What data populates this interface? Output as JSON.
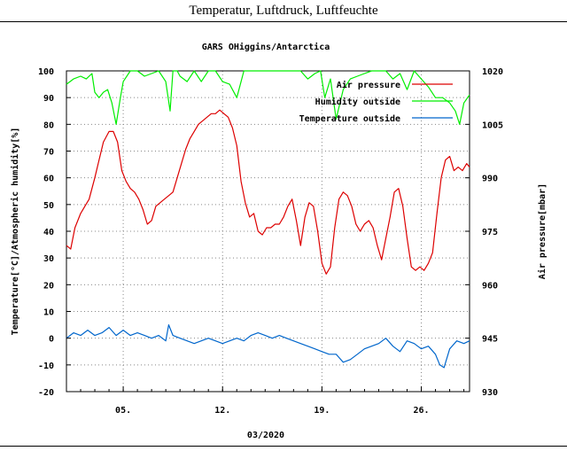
{
  "page": {
    "title": "Temperatur, Luftdruck, Luftfeuchte"
  },
  "chart_data": {
    "type": "line",
    "title": "GARS OHiggins/Antarctica",
    "xlabel": "03/2020",
    "ylabel_left": "Temperature[°C]/Atmospheric humidity[%]",
    "ylabel_right": "Air pressure[mbar]",
    "xlim": [
      1,
      29.4
    ],
    "ylim_left": [
      -20,
      100
    ],
    "ylim_right": [
      930,
      1020
    ],
    "x_ticks": [
      5,
      12,
      19,
      26
    ],
    "x_tick_labels": [
      "05.",
      "12.",
      "19.",
      "26."
    ],
    "y_ticks_left": [
      -20,
      -10,
      0,
      10,
      20,
      30,
      40,
      50,
      60,
      70,
      80,
      90,
      100
    ],
    "y_ticks_right": [
      930,
      945,
      960,
      975,
      990,
      1005,
      1020
    ],
    "grid": true,
    "legend_position": "top-right",
    "series": [
      {
        "name": "Air pressure",
        "axis": "right",
        "color": "#dd0000",
        "x": [
          1.0,
          1.3,
          1.6,
          2.0,
          2.3,
          2.6,
          3.0,
          3.3,
          3.6,
          4.0,
          4.3,
          4.6,
          4.9,
          5.2,
          5.5,
          5.8,
          6.1,
          6.4,
          6.7,
          7.0,
          7.3,
          7.6,
          7.9,
          8.2,
          8.5,
          8.8,
          9.1,
          9.4,
          9.7,
          10.0,
          10.3,
          10.6,
          10.9,
          11.2,
          11.5,
          11.8,
          12.1,
          12.4,
          12.7,
          13.0,
          13.3,
          13.6,
          13.9,
          14.2,
          14.5,
          14.8,
          15.1,
          15.4,
          15.7,
          16.0,
          16.3,
          16.6,
          16.9,
          17.2,
          17.5,
          17.8,
          18.1,
          18.4,
          18.7,
          19.0,
          19.3,
          19.6,
          19.9,
          20.2,
          20.5,
          20.8,
          21.1,
          21.4,
          21.7,
          22.0,
          22.3,
          22.6,
          22.9,
          23.2,
          23.5,
          23.8,
          24.1,
          24.4,
          24.7,
          25.0,
          25.3,
          25.6,
          25.9,
          26.2,
          26.5,
          26.8,
          27.1,
          27.4,
          27.7,
          28.0,
          28.3,
          28.6,
          28.9,
          29.2,
          29.4
        ],
        "values": [
          971,
          970,
          976,
          980,
          982,
          984,
          990,
          995,
          1000,
          1003,
          1003,
          1000,
          992,
          989,
          987,
          986,
          984,
          981,
          977,
          978,
          982,
          983,
          984,
          985,
          986,
          990,
          994,
          998,
          1001,
          1003,
          1005,
          1006,
          1007,
          1008,
          1008,
          1009,
          1008,
          1007,
          1004,
          999,
          989,
          983,
          979,
          980,
          975,
          974,
          976,
          976,
          977,
          977,
          979,
          982,
          984,
          978,
          971,
          979,
          983,
          982,
          975,
          966,
          963,
          965,
          976,
          984,
          986,
          985,
          982,
          977,
          975,
          977,
          978,
          976,
          971,
          967,
          973,
          979,
          986,
          987,
          982,
          973,
          965,
          964,
          965,
          964,
          966,
          969,
          980,
          990,
          995,
          996,
          992,
          993,
          992,
          994,
          993
        ]
      },
      {
        "name": "Humidity outside",
        "axis": "left",
        "color": "#00ee00",
        "x": [
          1.0,
          1.5,
          2.0,
          2.4,
          2.8,
          3.0,
          3.3,
          3.6,
          3.9,
          4.2,
          4.5,
          4.8,
          5.0,
          5.5,
          6.0,
          6.5,
          7.0,
          7.5,
          8.0,
          8.3,
          8.5,
          8.8,
          9.0,
          9.5,
          10.0,
          10.5,
          11.0,
          11.5,
          12.0,
          12.5,
          13.0,
          13.5,
          14.0,
          14.5,
          15.0,
          15.5,
          16.0,
          16.5,
          17.0,
          17.5,
          18.0,
          18.5,
          18.9,
          19.2,
          19.6,
          20.0,
          20.5,
          21.0,
          21.5,
          22.0,
          22.5,
          23.0,
          23.5,
          24.0,
          24.5,
          25.0,
          25.5,
          26.0,
          26.5,
          27.0,
          27.5,
          28.0,
          28.4,
          28.7,
          29.0,
          29.4
        ],
        "values": [
          95,
          97,
          98,
          97,
          99,
          92,
          90,
          92,
          93,
          88,
          80,
          90,
          96,
          100,
          100,
          98,
          99,
          100,
          96,
          85,
          100,
          100,
          98,
          96,
          100,
          96,
          100,
          100,
          96,
          95,
          90,
          100,
          100,
          100,
          100,
          100,
          100,
          100,
          100,
          100,
          97,
          99,
          100,
          90,
          97,
          82,
          93,
          97,
          98,
          99,
          100,
          100,
          100,
          97,
          99,
          93,
          100,
          97,
          94,
          90,
          90,
          88,
          85,
          80,
          88,
          91
        ]
      },
      {
        "name": "Temperature outside",
        "axis": "left",
        "color": "#0066cc",
        "x": [
          1.0,
          1.5,
          2.0,
          2.5,
          3.0,
          3.5,
          4.0,
          4.5,
          5.0,
          5.5,
          6.0,
          6.5,
          7.0,
          7.5,
          8.0,
          8.2,
          8.5,
          9.0,
          9.5,
          10.0,
          10.5,
          11.0,
          11.5,
          12.0,
          12.5,
          13.0,
          13.5,
          14.0,
          14.5,
          15.0,
          15.5,
          16.0,
          16.5,
          17.0,
          17.5,
          18.0,
          18.5,
          19.0,
          19.5,
          20.0,
          20.5,
          21.0,
          21.5,
          22.0,
          22.5,
          23.0,
          23.5,
          24.0,
          24.5,
          25.0,
          25.5,
          26.0,
          26.5,
          27.0,
          27.3,
          27.6,
          28.0,
          28.5,
          29.0,
          29.4
        ],
        "values": [
          0,
          2,
          1,
          3,
          1,
          2,
          4,
          1,
          3,
          1,
          2,
          1,
          0,
          1,
          -1,
          5,
          1,
          0,
          -1,
          -2,
          -1,
          0,
          -1,
          -2,
          -1,
          0,
          -1,
          1,
          2,
          1,
          0,
          1,
          0,
          -1,
          -2,
          -3,
          -4,
          -5,
          -6,
          -6,
          -9,
          -8,
          -6,
          -4,
          -3,
          -2,
          0,
          -3,
          -5,
          -1,
          -2,
          -4,
          -3,
          -6,
          -10,
          -11,
          -4,
          -1,
          -2,
          -1
        ]
      }
    ]
  }
}
